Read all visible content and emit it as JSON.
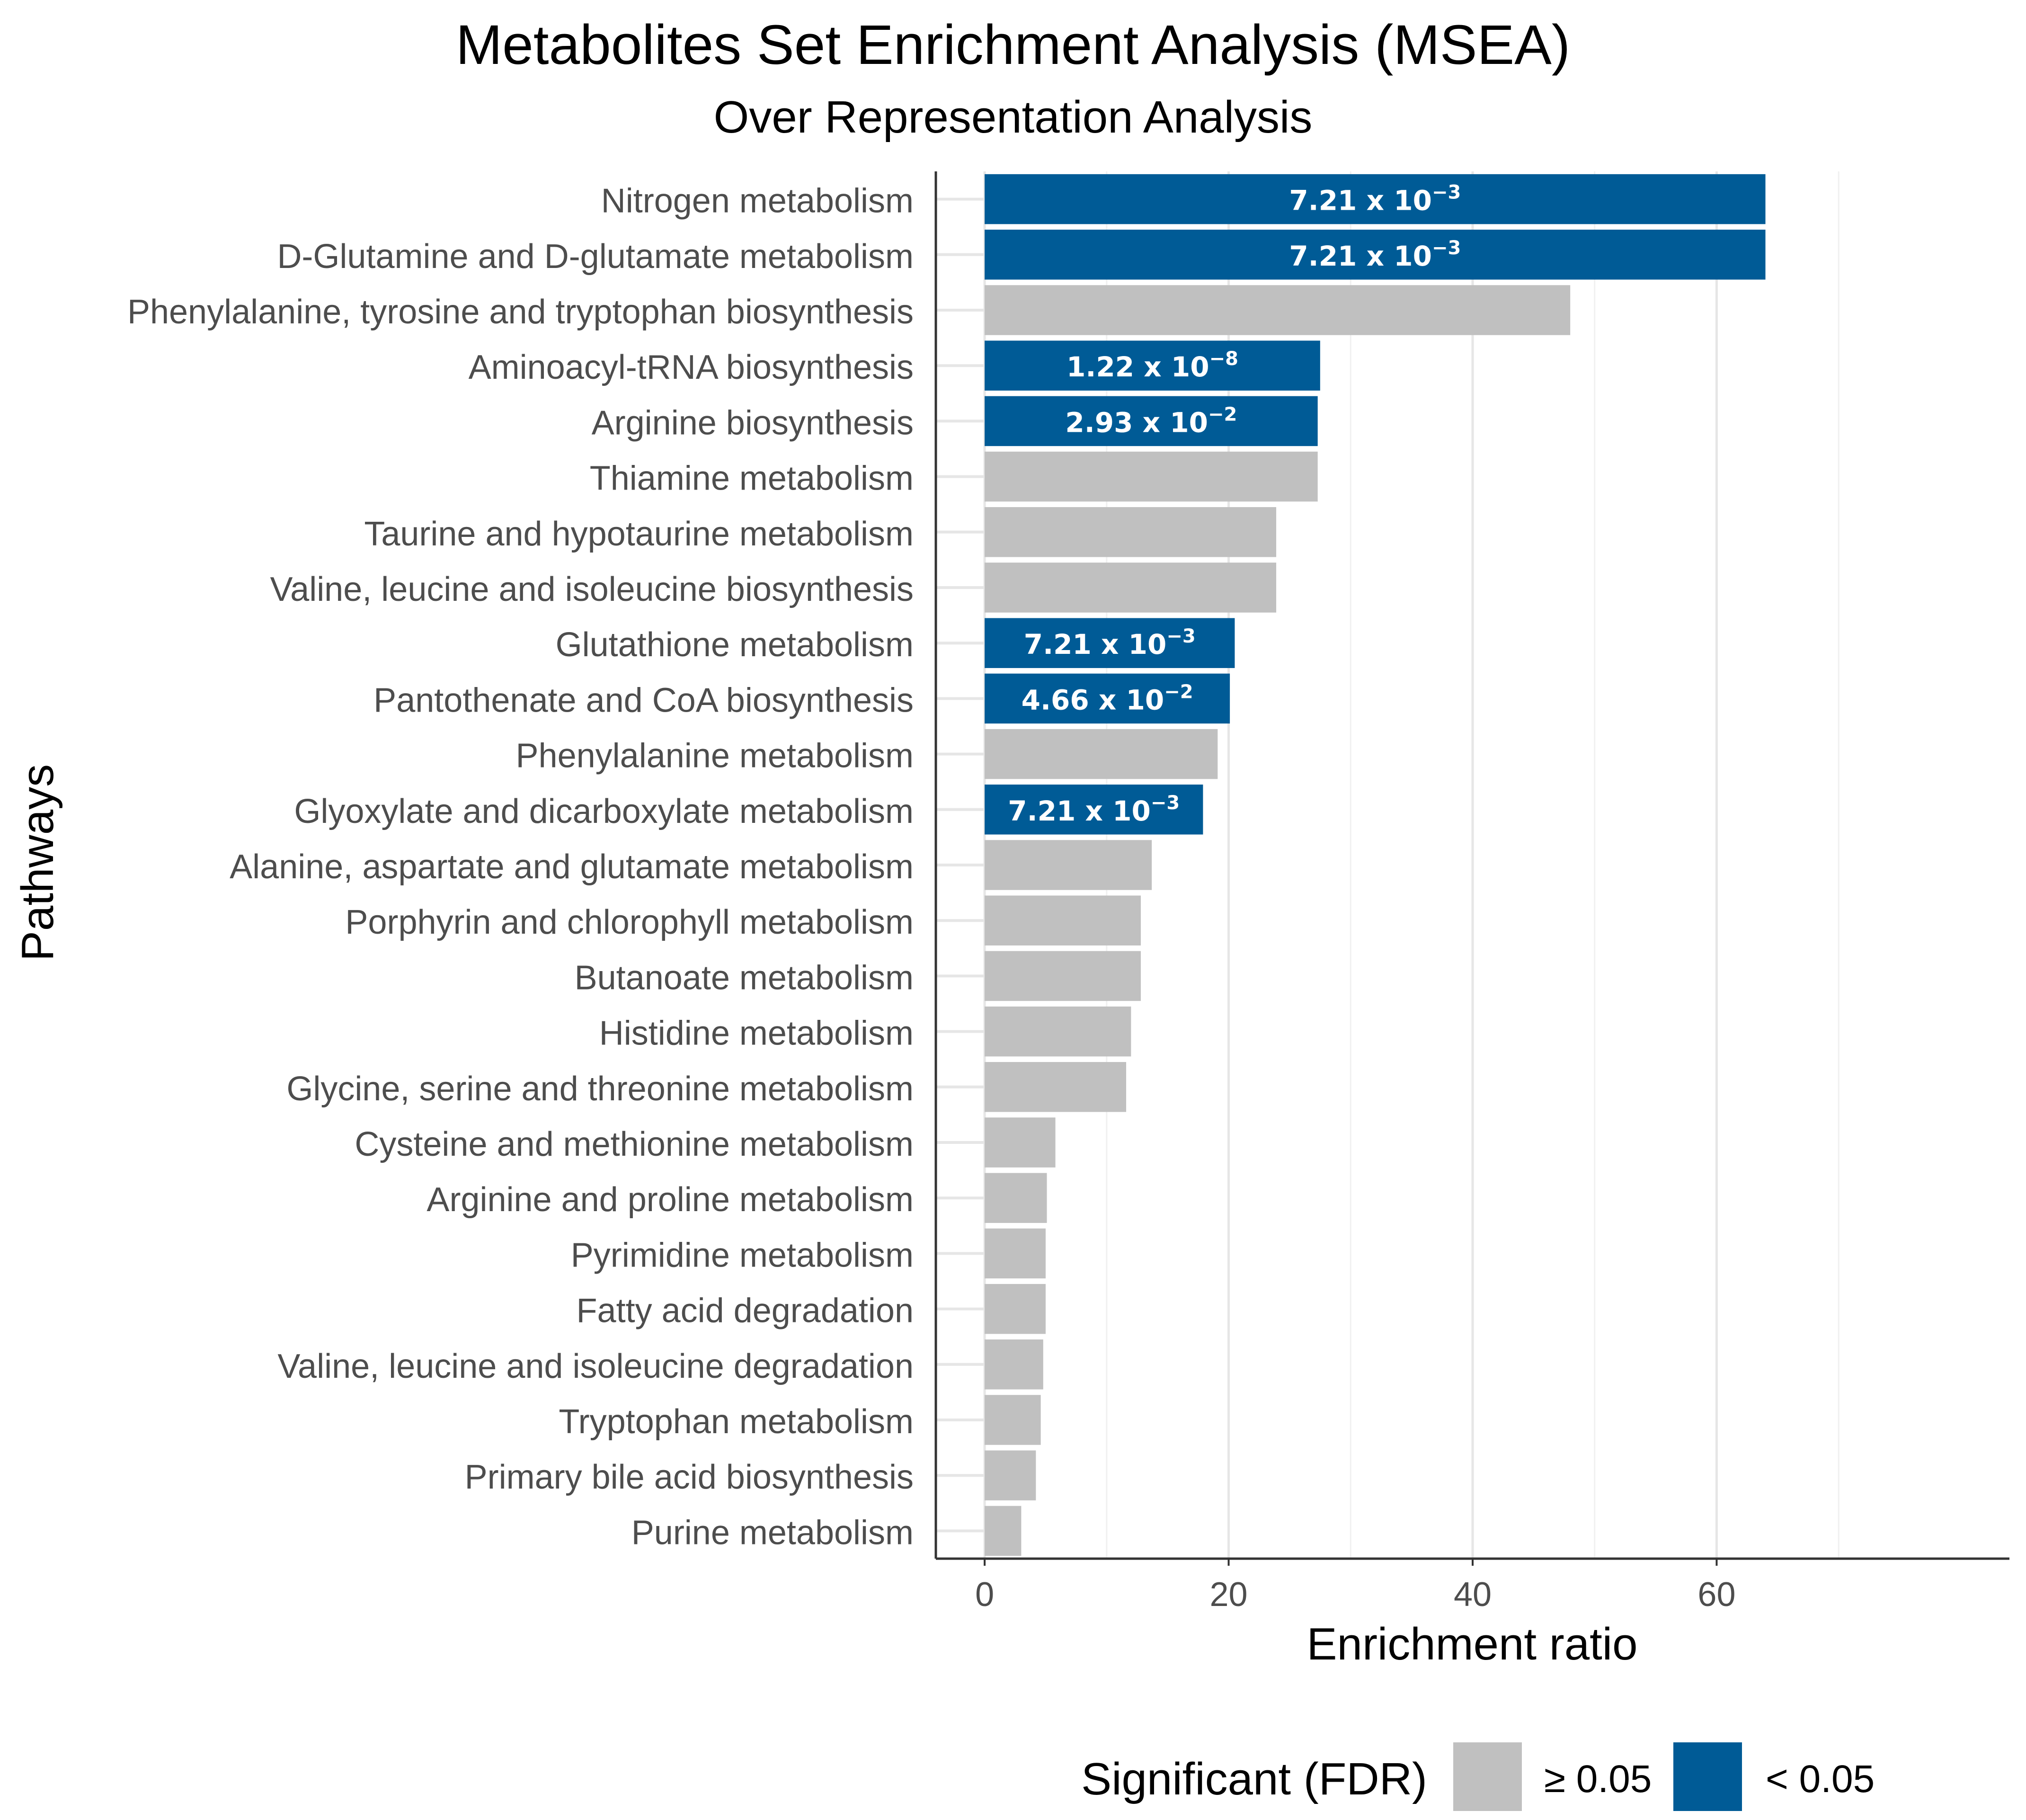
{
  "chart_data": {
    "type": "bar",
    "orientation": "horizontal",
    "title": "Metabolites Set Enrichment Analysis (MSEA)",
    "subtitle": "Over Representation Analysis",
    "xlabel": "Enrichment ratio",
    "ylabel": "Pathways",
    "xlim": [
      -4,
      84
    ],
    "xticks": [
      0,
      20,
      40,
      60
    ],
    "categories": [
      "Nitrogen metabolism",
      "D-Glutamine and D-glutamate metabolism",
      "Phenylalanine, tyrosine and tryptophan biosynthesis",
      "Aminoacyl-tRNA biosynthesis",
      "Arginine biosynthesis",
      "Thiamine metabolism",
      "Taurine and hypotaurine metabolism",
      "Valine, leucine and isoleucine biosynthesis",
      "Glutathione metabolism",
      "Pantothenate and CoA biosynthesis",
      "Phenylalanine metabolism",
      "Glyoxylate and dicarboxylate metabolism",
      "Alanine, aspartate and glutamate metabolism",
      "Porphyrin and chlorophyll metabolism",
      "Butanoate metabolism",
      "Histidine metabolism",
      "Glycine, serine and threonine metabolism",
      "Cysteine and methionine metabolism",
      "Arginine and proline metabolism",
      "Pyrimidine metabolism",
      "Fatty acid degradation",
      "Valine, leucine and isoleucine degradation",
      "Tryptophan metabolism",
      "Primary bile acid biosynthesis",
      "Purine metabolism"
    ],
    "values": [
      64.0,
      64.0,
      48.0,
      27.5,
      27.3,
      27.3,
      23.9,
      23.9,
      20.5,
      20.1,
      19.1,
      17.9,
      13.7,
      12.8,
      12.8,
      12.0,
      11.6,
      5.8,
      5.1,
      5.0,
      5.0,
      4.8,
      4.6,
      4.2,
      3.0
    ],
    "significant": [
      true,
      true,
      false,
      true,
      true,
      false,
      false,
      false,
      true,
      true,
      false,
      true,
      false,
      false,
      false,
      false,
      false,
      false,
      false,
      false,
      false,
      false,
      false,
      false,
      false
    ],
    "fdr_labels": [
      {
        "mantissa": "7.21 x 10",
        "exponent": "−3"
      },
      {
        "mantissa": "7.21 x 10",
        "exponent": "−3"
      },
      null,
      {
        "mantissa": "1.22 x 10",
        "exponent": "−8"
      },
      {
        "mantissa": "2.93 x 10",
        "exponent": "−2"
      },
      null,
      null,
      null,
      {
        "mantissa": "7.21 x 10",
        "exponent": "−3"
      },
      {
        "mantissa": "4.66 x 10",
        "exponent": "−2"
      },
      null,
      {
        "mantissa": "7.21 x 10",
        "exponent": "−3"
      },
      null,
      null,
      null,
      null,
      null,
      null,
      null,
      null,
      null,
      null,
      null,
      null,
      null
    ],
    "legend": {
      "title": "Significant (FDR)",
      "position": "bottom",
      "entries": [
        {
          "label": "≥ 0.05",
          "color": "#c0c0c0"
        },
        {
          "label": "< 0.05",
          "color": "#005b96"
        }
      ]
    },
    "colors": {
      "significant": "#005b96",
      "not_significant": "#c0c0c0"
    }
  }
}
